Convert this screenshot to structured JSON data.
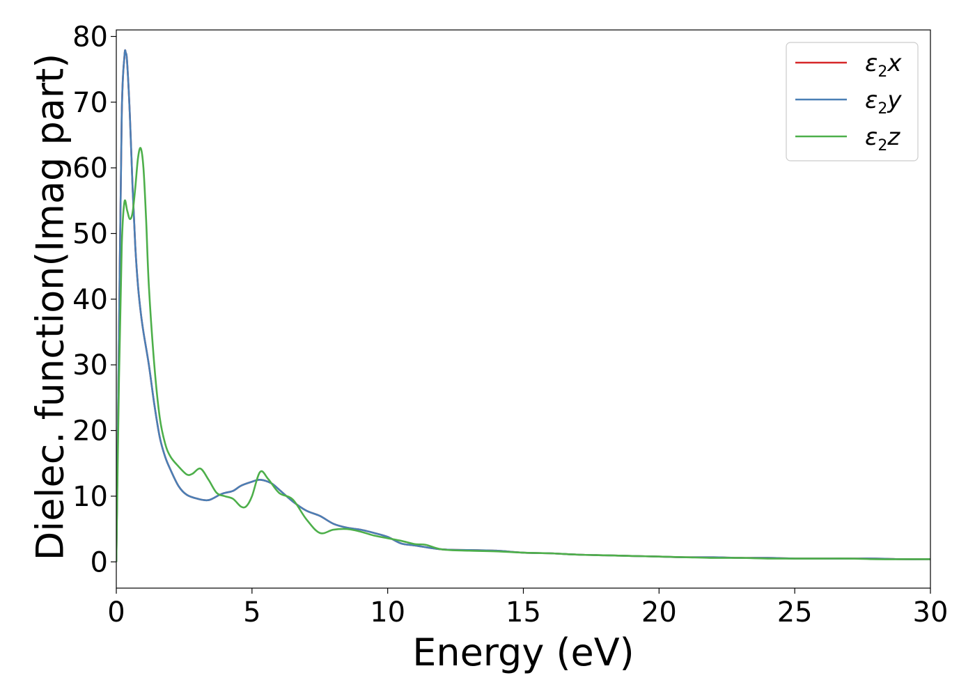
{
  "chart_data": {
    "type": "line",
    "title": "",
    "xlabel": "Energy (eV)",
    "ylabel": "Dielec. function(Imag part)",
    "xlim": [
      0,
      30
    ],
    "ylim": [
      -4,
      81
    ],
    "xticks": [
      0,
      5,
      10,
      15,
      20,
      25,
      30
    ],
    "yticks": [
      0,
      10,
      20,
      30,
      40,
      50,
      60,
      70,
      80
    ],
    "grid": false,
    "legend_position": "top-right",
    "series": [
      {
        "name": "ε2x",
        "legend_base": "ε",
        "legend_sub": "2",
        "legend_var": "x",
        "color": "#d62728",
        "x": [
          0,
          0.1,
          0.2,
          0.3,
          0.35,
          0.4,
          0.5,
          0.6,
          0.7,
          0.8,
          0.9,
          1.0,
          1.2,
          1.4,
          1.6,
          1.8,
          2.0,
          2.3,
          2.6,
          3.0,
          3.4,
          3.8,
          4.0,
          4.3,
          4.6,
          5.0,
          5.3,
          5.7,
          6.0,
          6.5,
          7.0,
          7.5,
          8.0,
          8.5,
          9.0,
          9.5,
          10.0,
          10.5,
          11.0,
          12.0,
          13.0,
          14.0,
          15.0,
          16.0,
          17.0,
          18.0,
          19.0,
          20.0,
          21.0,
          22.0,
          23.0,
          24.0,
          25.0,
          26.0,
          27.0,
          28.0,
          29.0,
          30.0
        ],
        "values": [
          0,
          35,
          68,
          77,
          77.5,
          76,
          68,
          57,
          48,
          42,
          38,
          35,
          30,
          24,
          19,
          16,
          14,
          11.5,
          10.2,
          9.6,
          9.4,
          10.2,
          10.5,
          10.8,
          11.6,
          12.2,
          12.5,
          12.0,
          11.0,
          9.2,
          7.8,
          7.0,
          5.8,
          5.2,
          4.9,
          4.4,
          3.8,
          2.8,
          2.5,
          1.9,
          1.8,
          1.7,
          1.4,
          1.3,
          1.1,
          1.0,
          0.9,
          0.8,
          0.7,
          0.7,
          0.6,
          0.6,
          0.5,
          0.5,
          0.5,
          0.5,
          0.4,
          0.4
        ]
      },
      {
        "name": "ε2y",
        "legend_base": "ε",
        "legend_sub": "2",
        "legend_var": "y",
        "color": "#4a7fb5",
        "x": [
          0,
          0.1,
          0.2,
          0.3,
          0.35,
          0.4,
          0.5,
          0.6,
          0.7,
          0.8,
          0.9,
          1.0,
          1.2,
          1.4,
          1.6,
          1.8,
          2.0,
          2.3,
          2.6,
          3.0,
          3.4,
          3.8,
          4.0,
          4.3,
          4.6,
          5.0,
          5.3,
          5.7,
          6.0,
          6.5,
          7.0,
          7.5,
          8.0,
          8.5,
          9.0,
          9.5,
          10.0,
          10.5,
          11.0,
          12.0,
          13.0,
          14.0,
          15.0,
          16.0,
          17.0,
          18.0,
          19.0,
          20.0,
          21.0,
          22.0,
          23.0,
          24.0,
          25.0,
          26.0,
          27.0,
          28.0,
          29.0,
          30.0
        ],
        "values": [
          0,
          35,
          68,
          77,
          77.5,
          76,
          68,
          57,
          48,
          42,
          38,
          35,
          30,
          24,
          19,
          16,
          14,
          11.5,
          10.2,
          9.6,
          9.4,
          10.2,
          10.5,
          10.8,
          11.6,
          12.2,
          12.5,
          12.0,
          11.0,
          9.2,
          7.8,
          7.0,
          5.8,
          5.2,
          4.9,
          4.4,
          3.8,
          2.8,
          2.5,
          1.9,
          1.8,
          1.7,
          1.4,
          1.3,
          1.1,
          1.0,
          0.9,
          0.8,
          0.7,
          0.7,
          0.6,
          0.6,
          0.5,
          0.5,
          0.5,
          0.5,
          0.4,
          0.4
        ]
      },
      {
        "name": "ε2z",
        "legend_base": "ε",
        "legend_sub": "2",
        "legend_var": "z",
        "color": "#4daf4a",
        "x": [
          0,
          0.1,
          0.2,
          0.3,
          0.4,
          0.5,
          0.6,
          0.7,
          0.8,
          0.9,
          1.0,
          1.1,
          1.2,
          1.4,
          1.6,
          1.8,
          2.0,
          2.3,
          2.6,
          2.8,
          3.1,
          3.4,
          3.7,
          4.0,
          4.3,
          4.6,
          4.8,
          5.0,
          5.3,
          5.6,
          6.0,
          6.5,
          7.0,
          7.5,
          8.0,
          8.5,
          9.0,
          9.5,
          10.0,
          10.5,
          11.0,
          11.4,
          12.0,
          13.0,
          14.0,
          15.0,
          16.0,
          17.0,
          18.0,
          19.0,
          20.0,
          21.0,
          22.0,
          23.0,
          24.0,
          25.0,
          26.0,
          27.0,
          28.0,
          29.0,
          30.0
        ],
        "values": [
          0,
          28,
          48,
          54.8,
          53.5,
          52.2,
          53.2,
          57,
          61.5,
          63,
          60,
          52,
          42,
          30,
          22,
          18,
          16,
          14.5,
          13.3,
          13.4,
          14.2,
          12.5,
          10.5,
          10.0,
          9.6,
          8.4,
          8.5,
          10.0,
          13.7,
          12.6,
          10.5,
          9.5,
          6.5,
          4.4,
          4.9,
          5.0,
          4.6,
          4.0,
          3.6,
          3.2,
          2.7,
          2.6,
          1.9,
          1.7,
          1.6,
          1.4,
          1.3,
          1.1,
          1.0,
          0.9,
          0.8,
          0.7,
          0.6,
          0.6,
          0.5,
          0.5,
          0.5,
          0.5,
          0.4,
          0.4,
          0.4
        ]
      }
    ]
  }
}
